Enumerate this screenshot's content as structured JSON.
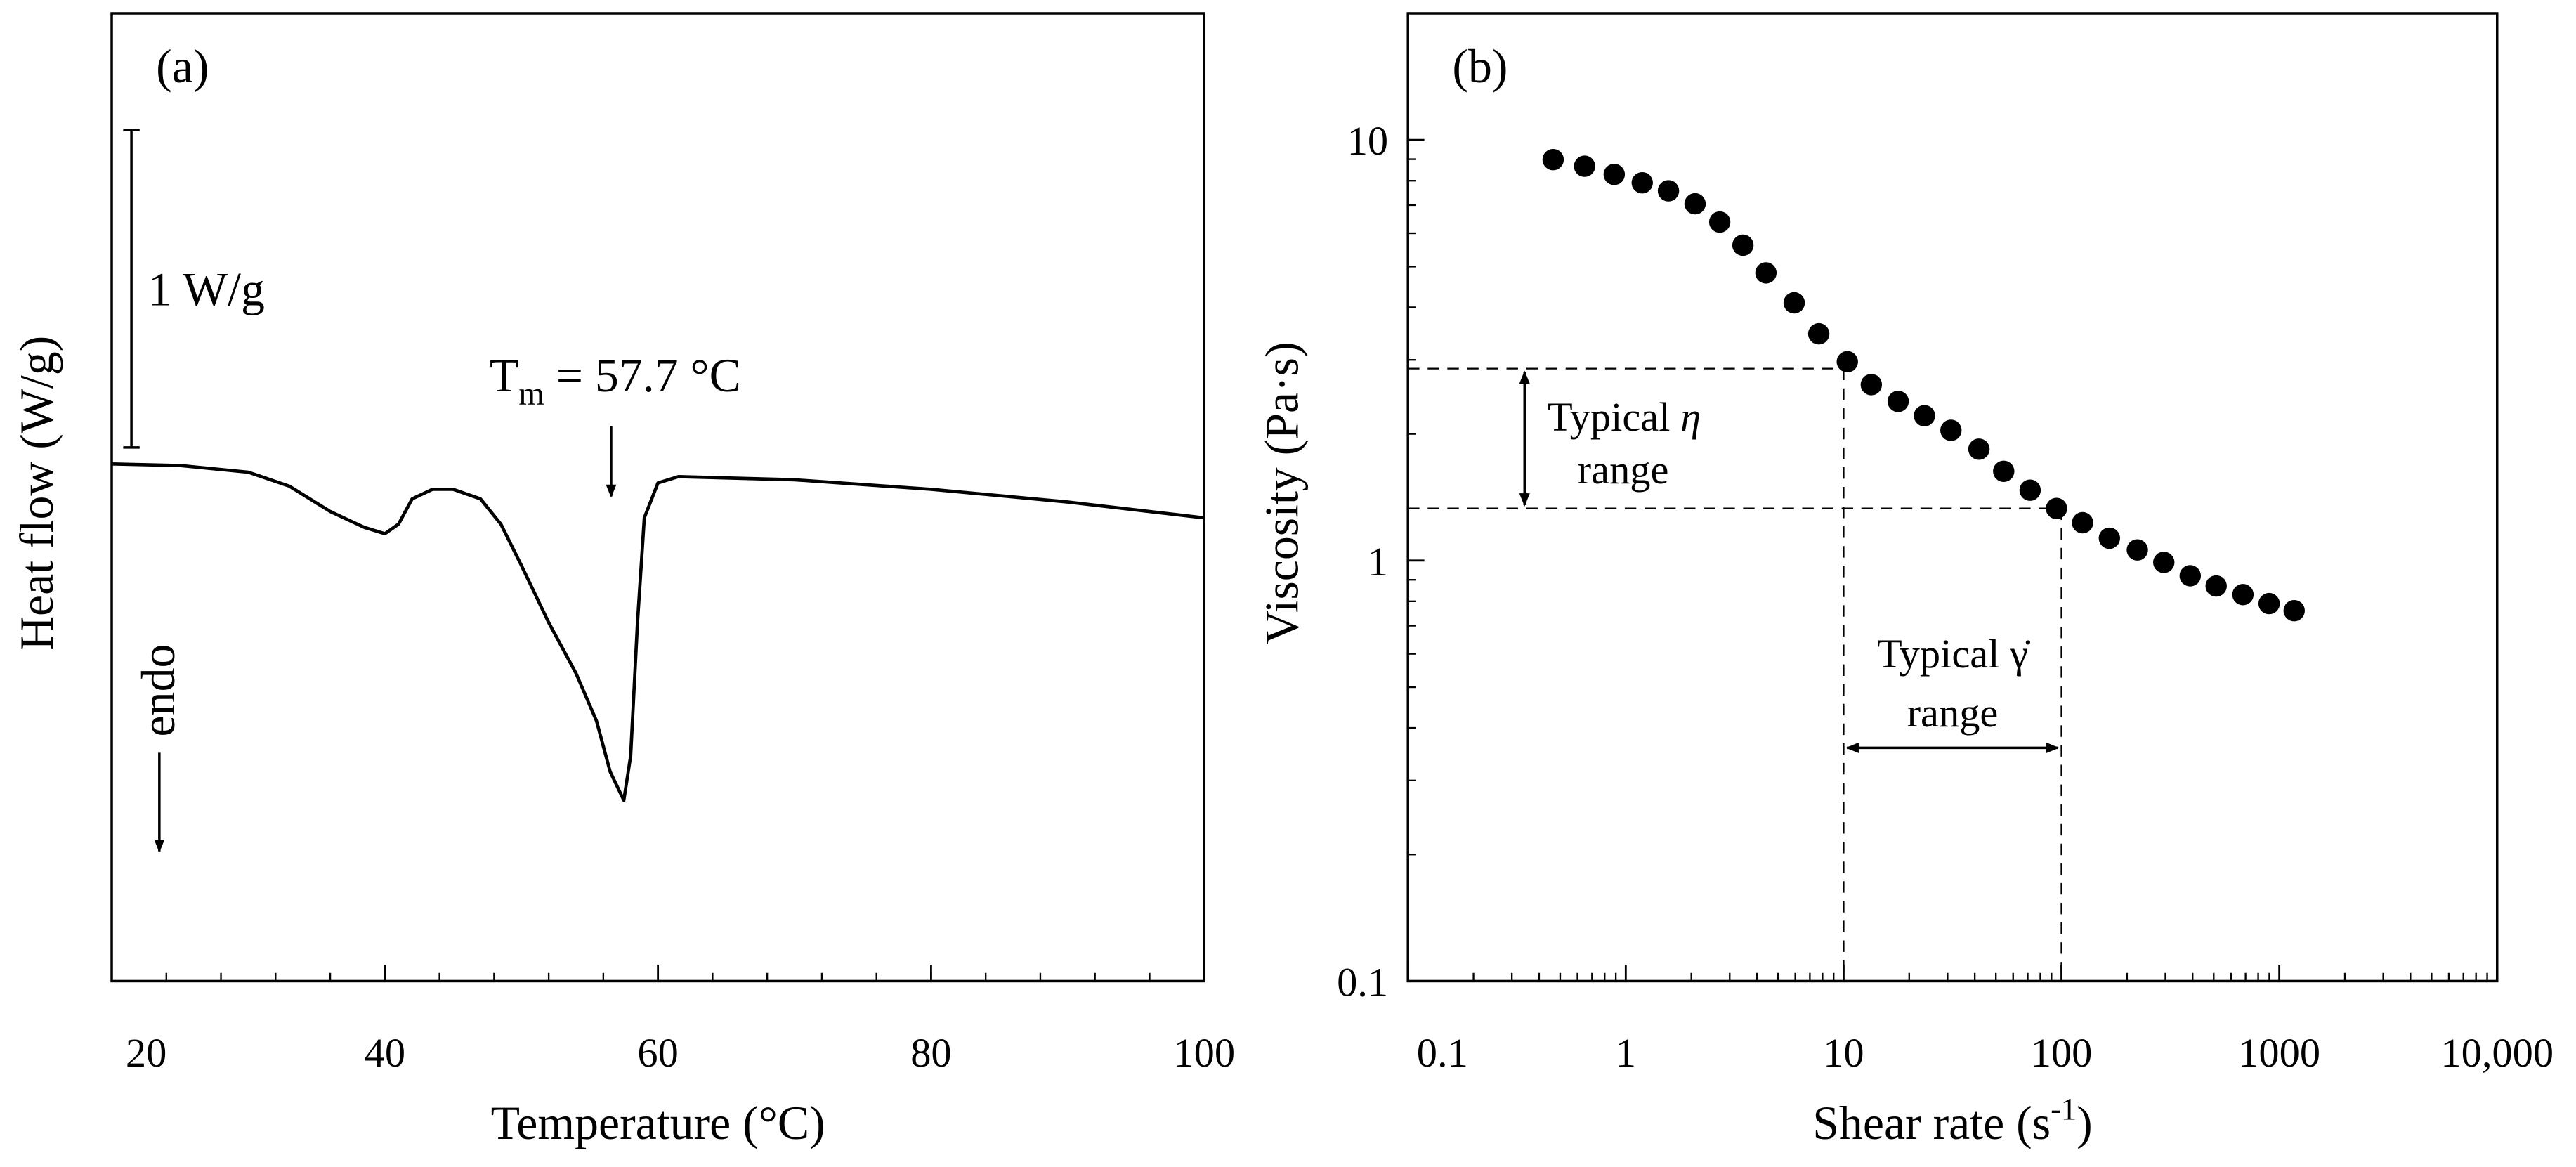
{
  "chart_data": [
    {
      "type": "line",
      "label": "(a)",
      "xlabel": "Temperature (°C)",
      "ylabel": "Heat flow (W/g)",
      "xlim": [
        20,
        100
      ],
      "xticks": [
        20,
        40,
        60,
        80,
        100
      ],
      "ylim": [
        -1.63,
        1.42
      ],
      "color": "#000000",
      "x": [
        20,
        25,
        30,
        33,
        36,
        38.5,
        40,
        41,
        42,
        43.5,
        45,
        47,
        48.5,
        50,
        52,
        54,
        55.5,
        56.5,
        57.5,
        58,
        58.5,
        59,
        60,
        61.5,
        70,
        80,
        90,
        100
      ],
      "values": [
        0,
        -0.005,
        -0.026,
        -0.07,
        -0.15,
        -0.2,
        -0.22,
        -0.19,
        -0.11,
        -0.08,
        -0.08,
        -0.11,
        -0.19,
        -0.32,
        -0.5,
        -0.66,
        -0.81,
        -0.97,
        -1.06,
        -0.92,
        -0.5,
        -0.17,
        -0.06,
        -0.04,
        -0.05,
        -0.08,
        -0.12,
        -0.17
      ],
      "scale_bar": {
        "value": 1,
        "label": "1 W/g"
      },
      "peak_annotation": {
        "symbol": "T",
        "subscript": "m",
        "text": " = 57.7 °C"
      },
      "direction_label": "endo"
    },
    {
      "type": "scatter",
      "label": "(b)",
      "xlabel": {
        "text": "Shear rate (s",
        "sup": "-1",
        "end": ")"
      },
      "ylabel": "Viscosity (Pa·s)",
      "xscale": "log",
      "yscale": "log",
      "xlim": [
        0.1,
        10000
      ],
      "ylim": [
        0.1,
        20
      ],
      "xticks": [
        0.1,
        1,
        10,
        100,
        1000,
        {
          "value": 10000,
          "label": "10,000"
        }
      ],
      "yticks": [
        0.1,
        1,
        10
      ],
      "color": "#000000",
      "x": [
        0.464,
        0.647,
        0.885,
        1.19,
        1.57,
        2.08,
        2.7,
        3.45,
        4.4,
        5.93,
        7.69,
        10.4,
        13.4,
        17.8,
        23.5,
        31.1,
        41.8,
        54.3,
        71.8,
        94.9,
        125,
        166,
        223,
        295,
        390,
        513,
        681,
        898,
        1170
      ],
      "values": [
        8.98,
        8.66,
        8.28,
        7.91,
        7.57,
        7.05,
        6.38,
        5.62,
        4.83,
        4.1,
        3.46,
        2.97,
        2.62,
        2.39,
        2.21,
        2.04,
        1.84,
        1.63,
        1.47,
        1.33,
        1.23,
        1.13,
        1.06,
        0.99,
        0.92,
        0.87,
        0.83,
        0.79,
        0.76
      ],
      "reference": {
        "x": [
          10,
          100
        ],
        "y": [
          2.86,
          1.33
        ]
      },
      "eta_annotation": {
        "text": "Typical ",
        "symbol": "η",
        "line2": "range"
      },
      "rate_annotation": {
        "text": "Typical γ̇",
        "line2": "range"
      }
    }
  ]
}
